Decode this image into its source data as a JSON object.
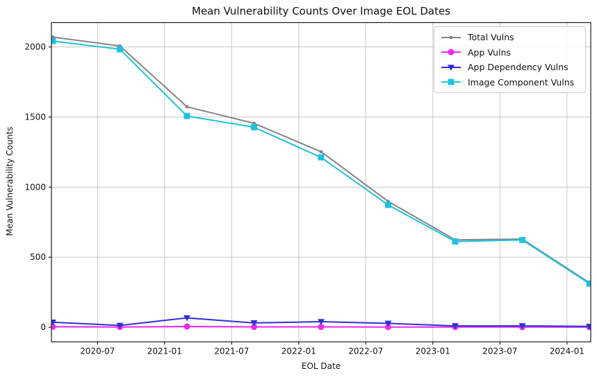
{
  "chart_data": {
    "type": "line",
    "title": "Mean Vulnerability Counts Over Image EOL Dates",
    "xlabel": "EOL Date",
    "ylabel": "Mean Vulnerability Counts",
    "x": [
      "2020-03",
      "2020-09",
      "2021-03",
      "2021-09",
      "2022-03",
      "2022-09",
      "2023-03",
      "2023-09",
      "2024-03"
    ],
    "series": [
      {
        "name": "Total Vulns",
        "color": "#858585",
        "marker": "dot",
        "values": [
          2070,
          2007,
          1573,
          1455,
          1252,
          898,
          624,
          629,
          318
        ]
      },
      {
        "name": "App Vulns",
        "color": "#ed2bed",
        "marker": "circle",
        "values": [
          4,
          2,
          6,
          3,
          3,
          2,
          2,
          2,
          1
        ]
      },
      {
        "name": "App Dependency Vulns",
        "color": "#2f2fd8",
        "marker": "triangle-down",
        "values": [
          36,
          13,
          67,
          31,
          40,
          28,
          10,
          10,
          6
        ]
      },
      {
        "name": "Image Component Vulns",
        "color": "#1cc2e0",
        "marker": "square",
        "values": [
          2042,
          1983,
          1507,
          1427,
          1212,
          873,
          612,
          623,
          312
        ]
      }
    ],
    "x_tick_labels": [
      "2020-07",
      "2021-01",
      "2021-07",
      "2022-01",
      "2022-07",
      "2023-01",
      "2023-07",
      "2024-01"
    ],
    "y_tick_labels": [
      "0",
      "500",
      "1000",
      "1500",
      "2000"
    ],
    "y_ticks": [
      0,
      500,
      1000,
      1500,
      2000
    ],
    "ylim": [
      -103.5,
      2173.5
    ],
    "xlim_months": [
      -0.125,
      48.125
    ],
    "grid": true,
    "grid_color": "#c8c8c8",
    "axis_color": "#1a1a1a",
    "legend_position": "upper right"
  }
}
